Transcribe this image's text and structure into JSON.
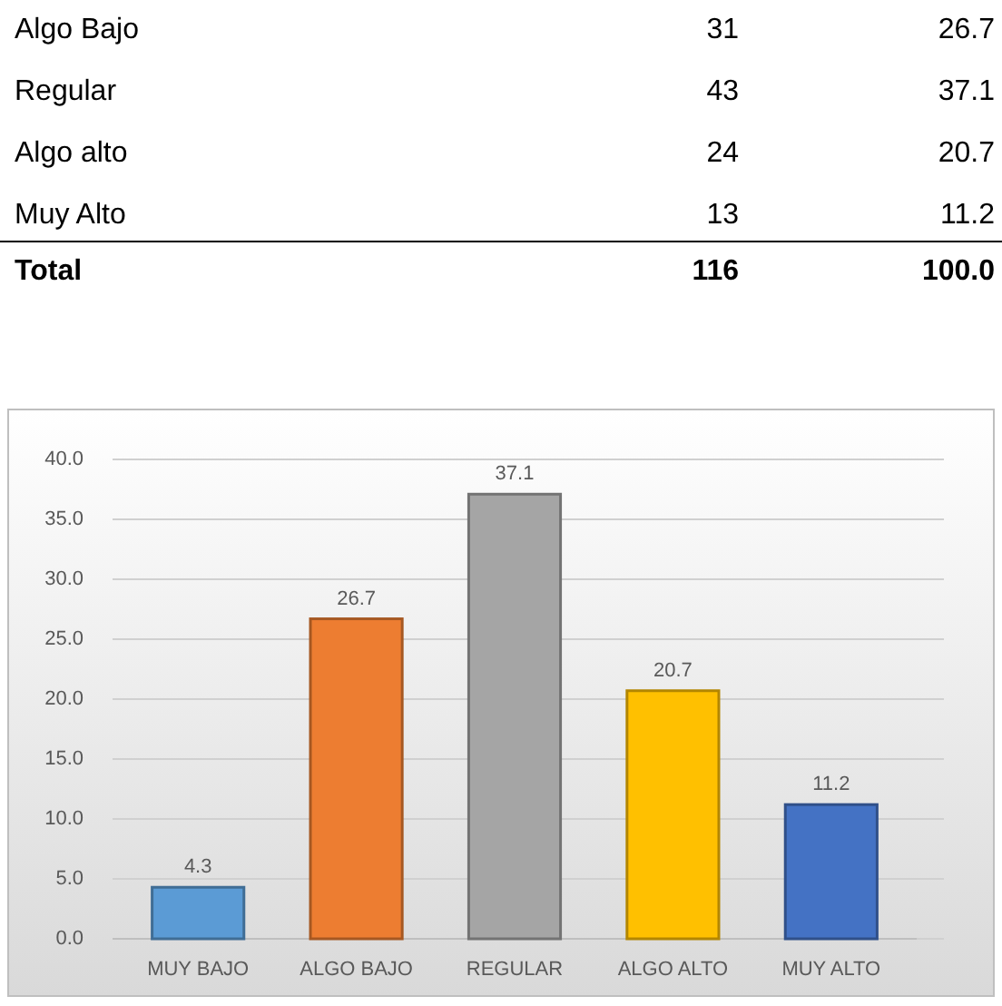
{
  "chart_data": [
    {
      "type": "other",
      "annotations": [
        "Algo Bajo",
        "31",
        "26.7",
        "Regular",
        "43",
        "37.1",
        "Algo alto",
        "24",
        "20.7",
        "Muy Alto",
        "13",
        "11.2",
        "Total",
        "116",
        "100.0"
      ]
    },
    {
      "type": "bar",
      "categories": [
        "MUY BAJO",
        "ALGO BAJO",
        "REGULAR",
        "ALGO ALTO",
        "MUY ALTO"
      ],
      "values": [
        4.3,
        26.7,
        37.1,
        20.7,
        11.2
      ],
      "colors": [
        "#5b9bd5",
        "#ed7d31",
        "#a5a5a5",
        "#ffc000",
        "#4472c4"
      ],
      "ylim": [
        0,
        40
      ],
      "yticks": [
        {
          "value": 0,
          "label": "0.0"
        },
        {
          "value": 5,
          "label": "5.0"
        },
        {
          "value": 10,
          "label": "10.0"
        },
        {
          "value": 15,
          "label": "15.0"
        },
        {
          "value": 20,
          "label": "20.0"
        },
        {
          "value": 25,
          "label": "25.0"
        },
        {
          "value": 30,
          "label": "30.0"
        },
        {
          "value": 35,
          "label": "35.0"
        },
        {
          "value": 40,
          "label": "40.0"
        }
      ],
      "grid": "y",
      "data_labels": true
    }
  ]
}
